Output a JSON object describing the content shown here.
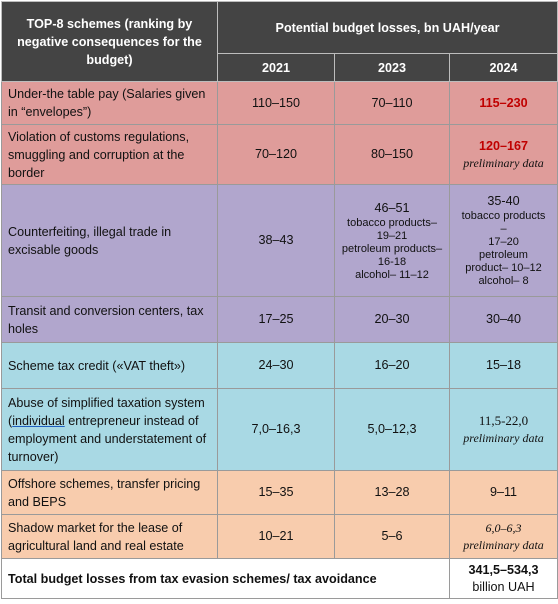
{
  "header": {
    "schemes": "TOP-8 schemes (ranking by negative consequences for the budget)",
    "losses": "Potential budget losses, bn UAH/year",
    "years": [
      "2021",
      "2023",
      "2024"
    ]
  },
  "rows": [
    {
      "name": "Under-the table pay (Salaries given in “envelopes”)",
      "v2021": "110–150",
      "v2023": "70–110",
      "v2024": "115–230"
    },
    {
      "name": "Violation of customs regulations, smuggling and corruption at the border",
      "v2021": "70–120",
      "v2023": "80–150",
      "v2024": "120–167",
      "v2024_note": "preliminary data"
    },
    {
      "name": "Counterfeiting, illegal trade in excisable goods",
      "v2021": "38–43",
      "v2023": "46–51",
      "v2023_detail": [
        "tobacco products–",
        "19–21",
        "petroleum products–",
        "16-18",
        "alcohol– 11–12"
      ],
      "v2024": "35-40",
      "v2024_detail": [
        "tobacco products",
        "–",
        "17–20",
        "petroleum",
        "product– 10–12",
        "alcohol– 8"
      ]
    },
    {
      "name": "Transit and conversion centers, tax holes",
      "v2021": "17–25",
      "v2023": "20–30",
      "v2024": "30–40"
    },
    {
      "name": "Scheme tax credit («VAT theft»)",
      "v2021": "24–30",
      "v2023": "16–20",
      "v2024": "15–18"
    },
    {
      "name_a": "Abuse of simplified taxation system (",
      "name_u": "individual",
      "name_b": " entrepreneur instead of employment and understatement of turnover)",
      "v2021": "7,0–16,3",
      "v2023": "5,0–12,3",
      "v2024": "11,5-22,0",
      "v2024_note": "preliminary data"
    },
    {
      "name": "Offshore schemes, transfer pricing and BEPS",
      "v2021": "15–35",
      "v2023": "13–28",
      "v2024": "9–11"
    },
    {
      "name": "Shadow market for the lease of agricultural land and real estate",
      "v2021": "10–21",
      "v2023": "5–6",
      "v2024": "6,0–6,3",
      "v2024_note": "preliminary data"
    }
  ],
  "total": {
    "label": "Total budget losses from tax evasion schemes/ tax avoidance",
    "value": "341,5–534,3",
    "unit": "billion UAH"
  },
  "colors": {
    "header": "#444444",
    "red_group": "#df9c9a",
    "purple_group": "#b1a6cd",
    "blue_group": "#a9d9e4",
    "peach_group": "#f8ccad",
    "highlight": "#c00000"
  }
}
